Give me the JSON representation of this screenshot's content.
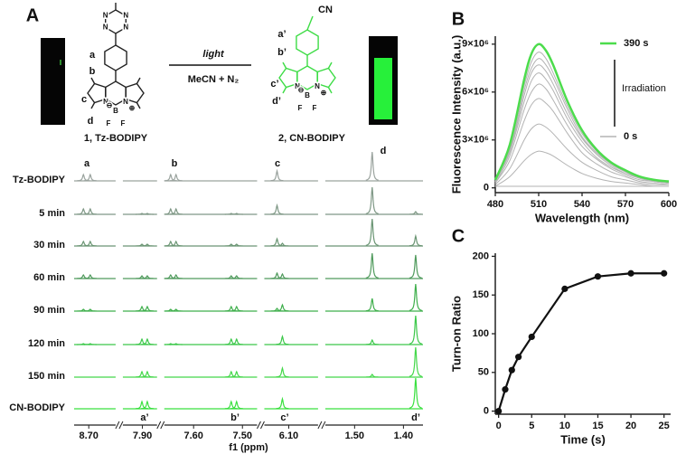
{
  "panel_a": {
    "label": "A",
    "reactant": {
      "name": "1, Tz-BODIPY",
      "site_labels": [
        "a",
        "b",
        "c",
        "d"
      ],
      "atoms": [
        "N",
        "N",
        "N",
        "N",
        "N",
        "N",
        "B",
        "F",
        "F",
        "⊖",
        "⊕"
      ]
    },
    "product": {
      "name": "2, CN-BODIPY",
      "substituent": "CN",
      "site_labels": [
        "a’",
        "b’",
        "c’",
        "d’"
      ],
      "atoms": [
        "N",
        "N",
        "B",
        "F",
        "F",
        "⊖",
        "⊕"
      ]
    },
    "conditions": {
      "above": "light",
      "below": "MeCN + N₂"
    },
    "nmr": {
      "xlabel": "f1 (ppm)",
      "segments": [
        {
          "range": [
            8.73,
            8.645
          ],
          "ticks": [
            {
              "value": 8.7,
              "label": "8.70"
            }
          ]
        },
        {
          "range": [
            7.94,
            7.87
          ],
          "ticks": [
            {
              "value": 7.9,
              "label": "7.90"
            }
          ]
        },
        {
          "range": [
            7.66,
            7.47
          ],
          "ticks": [
            {
              "value": 7.6,
              "label": "7.60"
            },
            {
              "value": 7.5,
              "label": "7.50"
            }
          ]
        },
        {
          "range": [
            6.15,
            6.04
          ],
          "ticks": [
            {
              "value": 6.1,
              "label": "6.10"
            }
          ]
        },
        {
          "range": [
            1.56,
            1.36
          ],
          "ticks": [
            {
              "value": 1.5,
              "label": "1.50"
            },
            {
              "value": 1.4,
              "label": "1.40"
            }
          ]
        }
      ],
      "peak_labels_top": [
        "a",
        "b",
        "c",
        "d"
      ],
      "peak_labels_bottom": [
        "a’",
        "b’",
        "c’",
        "d’"
      ],
      "traces": [
        {
          "name": "Tz-BODIPY",
          "color": "#9aa39e",
          "peaks": [
            {
              "ppm": 8.711,
              "h": 7
            },
            {
              "ppm": 8.697,
              "h": 7
            },
            {
              "ppm": 7.647,
              "h": 7
            },
            {
              "ppm": 7.636,
              "h": 7
            },
            {
              "ppm": 6.124,
              "h": 11
            },
            {
              "ppm": 1.464,
              "h": 32
            }
          ]
        },
        {
          "name": "5 min",
          "color": "#7f9886",
          "peaks": [
            {
              "ppm": 8.711,
              "h": 6
            },
            {
              "ppm": 8.697,
              "h": 6
            },
            {
              "ppm": 7.901,
              "h": 1
            },
            {
              "ppm": 7.89,
              "h": 1
            },
            {
              "ppm": 7.647,
              "h": 6
            },
            {
              "ppm": 7.636,
              "h": 6
            },
            {
              "ppm": 7.523,
              "h": 1
            },
            {
              "ppm": 7.512,
              "h": 1
            },
            {
              "ppm": 6.124,
              "h": 10
            },
            {
              "ppm": 1.464,
              "h": 30
            },
            {
              "ppm": 1.375,
              "h": 3
            }
          ]
        },
        {
          "name": "30 min",
          "color": "#6a9573",
          "peaks": [
            {
              "ppm": 8.711,
              "h": 5
            },
            {
              "ppm": 8.697,
              "h": 5
            },
            {
              "ppm": 7.901,
              "h": 2
            },
            {
              "ppm": 7.89,
              "h": 2
            },
            {
              "ppm": 7.647,
              "h": 5
            },
            {
              "ppm": 7.636,
              "h": 5
            },
            {
              "ppm": 7.523,
              "h": 2
            },
            {
              "ppm": 7.512,
              "h": 2
            },
            {
              "ppm": 6.124,
              "h": 8
            },
            {
              "ppm": 6.113,
              "h": 3
            },
            {
              "ppm": 1.464,
              "h": 30
            },
            {
              "ppm": 1.375,
              "h": 11
            }
          ]
        },
        {
          "name": "60 min",
          "color": "#4f9a5c",
          "peaks": [
            {
              "ppm": 8.711,
              "h": 4
            },
            {
              "ppm": 8.697,
              "h": 4
            },
            {
              "ppm": 7.901,
              "h": 3
            },
            {
              "ppm": 7.89,
              "h": 3
            },
            {
              "ppm": 7.647,
              "h": 4
            },
            {
              "ppm": 7.636,
              "h": 4
            },
            {
              "ppm": 7.523,
              "h": 3
            },
            {
              "ppm": 7.512,
              "h": 3
            },
            {
              "ppm": 6.124,
              "h": 6
            },
            {
              "ppm": 6.113,
              "h": 5
            },
            {
              "ppm": 1.464,
              "h": 28
            },
            {
              "ppm": 1.375,
              "h": 26
            }
          ]
        },
        {
          "name": "90 min",
          "color": "#3faf4c",
          "peaks": [
            {
              "ppm": 8.711,
              "h": 2
            },
            {
              "ppm": 8.697,
              "h": 2
            },
            {
              "ppm": 7.901,
              "h": 5
            },
            {
              "ppm": 7.89,
              "h": 5
            },
            {
              "ppm": 7.647,
              "h": 2
            },
            {
              "ppm": 7.636,
              "h": 2
            },
            {
              "ppm": 7.523,
              "h": 5
            },
            {
              "ppm": 7.512,
              "h": 5
            },
            {
              "ppm": 6.124,
              "h": 3
            },
            {
              "ppm": 6.113,
              "h": 7
            },
            {
              "ppm": 1.464,
              "h": 14
            },
            {
              "ppm": 1.375,
              "h": 30
            }
          ]
        },
        {
          "name": "120 min",
          "color": "#3cc84a",
          "peaks": [
            {
              "ppm": 8.711,
              "h": 1
            },
            {
              "ppm": 8.697,
              "h": 1
            },
            {
              "ppm": 7.901,
              "h": 6
            },
            {
              "ppm": 7.89,
              "h": 6
            },
            {
              "ppm": 7.647,
              "h": 1
            },
            {
              "ppm": 7.636,
              "h": 1
            },
            {
              "ppm": 7.523,
              "h": 6
            },
            {
              "ppm": 7.512,
              "h": 6
            },
            {
              "ppm": 6.113,
              "h": 9
            },
            {
              "ppm": 1.464,
              "h": 5
            },
            {
              "ppm": 1.375,
              "h": 32
            }
          ]
        },
        {
          "name": "150 min",
          "color": "#44d84a",
          "peaks": [
            {
              "ppm": 7.901,
              "h": 6
            },
            {
              "ppm": 7.89,
              "h": 6
            },
            {
              "ppm": 7.523,
              "h": 6
            },
            {
              "ppm": 7.512,
              "h": 6
            },
            {
              "ppm": 6.113,
              "h": 10
            },
            {
              "ppm": 1.464,
              "h": 3
            },
            {
              "ppm": 1.375,
              "h": 33
            }
          ]
        },
        {
          "name": "CN-BODIPY",
          "color": "#39e03f",
          "peaks": [
            {
              "ppm": 7.901,
              "h": 8
            },
            {
              "ppm": 7.89,
              "h": 8
            },
            {
              "ppm": 7.523,
              "h": 8
            },
            {
              "ppm": 7.512,
              "h": 8
            },
            {
              "ppm": 6.113,
              "h": 11
            },
            {
              "ppm": 1.375,
              "h": 34
            }
          ]
        }
      ]
    }
  },
  "chart_data": [
    {
      "type": "line",
      "label": "B",
      "xlabel": "Wavelength (nm)",
      "ylabel": "Fluorescence Intensity (a.u.)",
      "annotation": "Irradiation",
      "x": [
        480,
        490,
        500,
        505,
        510,
        515,
        520,
        530,
        540,
        550,
        560,
        570,
        580,
        590,
        600
      ],
      "xlim": [
        480,
        600
      ],
      "xticks": [
        480,
        510,
        540,
        570,
        600
      ],
      "ylim": [
        -300000,
        9500000
      ],
      "yticks": [
        0,
        {
          "value": 3000000,
          "label": "3×10⁶"
        },
        {
          "value": 6000000,
          "label": "6×10⁶"
        },
        {
          "value": 9000000,
          "label": "9×10⁶"
        }
      ],
      "series": [
        {
          "name": "0 s",
          "color": "#b3b3b3",
          "values": [
            100000.0,
            100000.0,
            100000.0,
            100000.0,
            100000.0,
            100000.0,
            100000.0,
            100000.0,
            100000.0,
            100000.0,
            100000.0,
            100000.0,
            100000.0,
            100000.0,
            100000.0
          ]
        },
        {
          "color": "#b3b3b3",
          "values": [
            100000.0,
            700000.0,
            1700000.0,
            2100000.0,
            2300000.0,
            2200000.0,
            2000000.0,
            1400000.0,
            900000.0,
            600000.0,
            400000.0,
            300000.0,
            200000.0,
            100000.0,
            100000.0
          ]
        },
        {
          "color": "#b3b3b3",
          "values": [
            200000.0,
            1200000.0,
            3000000.0,
            3700000.0,
            4000000.0,
            3800000.0,
            3400000.0,
            2400000.0,
            1600000.0,
            1100000.0,
            700000.0,
            500000.0,
            300000.0,
            200000.0,
            200000.0
          ]
        },
        {
          "color": "#b3b3b3",
          "values": [
            300000.0,
            1700000.0,
            4200000.0,
            5200000.0,
            5600000.0,
            5300000.0,
            4800000.0,
            3400000.0,
            2200000.0,
            1500000.0,
            1000000.0,
            700000.0,
            400000.0,
            300000.0,
            200000.0
          ]
        },
        {
          "color": "#b3b3b3",
          "values": [
            300000.0,
            2000000.0,
            4900000.0,
            6000000.0,
            6500000.0,
            6200000.0,
            5500000.0,
            3900000.0,
            2600000.0,
            1800000.0,
            1200000.0,
            800000.0,
            500000.0,
            400000.0,
            300000.0
          ]
        },
        {
          "color": "#b3b3b3",
          "values": [
            400000.0,
            2200000.0,
            5400000.0,
            6700000.0,
            7200000.0,
            6800000.0,
            6100000.0,
            4300000.0,
            2900000.0,
            1900000.0,
            1300000.0,
            900000.0,
            600000.0,
            400000.0,
            300000.0
          ]
        },
        {
          "color": "#b3b3b3",
          "values": [
            400000.0,
            2300000.0,
            5800000.0,
            7200000.0,
            7700000.0,
            7300000.0,
            6500000.0,
            4600000.0,
            3100000.0,
            2100000.0,
            1400000.0,
            900000.0,
            600000.0,
            400000.0,
            300000.0
          ]
        },
        {
          "color": "#b3b3b3",
          "values": [
            400000.0,
            2400000.0,
            6100000.0,
            7500000.0,
            8100000.0,
            7700000.0,
            6900000.0,
            4900000.0,
            3200000.0,
            2200000.0,
            1500000.0,
            1000000.0,
            600000.0,
            400000.0,
            300000.0
          ]
        },
        {
          "color": "#b3b3b3",
          "values": [
            400000.0,
            2600000.0,
            6400000.0,
            7900000.0,
            8500000.0,
            8100000.0,
            7200000.0,
            5100000.0,
            3400000.0,
            2300000.0,
            1500000.0,
            1000000.0,
            700000.0,
            500000.0,
            300000.0
          ]
        },
        {
          "name": "390 s",
          "color": "#4cdc4c",
          "values": [
            500000.0,
            2700000.0,
            6800000.0,
            8400000.0,
            9000000.0,
            8600000.0,
            7700000.0,
            5400000.0,
            3600000.0,
            2400000.0,
            1600000.0,
            1100000.0,
            700000.0,
            500000.0,
            400000.0
          ]
        }
      ]
    },
    {
      "type": "line",
      "label": "C",
      "xlabel": "Time (s)",
      "ylabel": "Turn-on Ratio",
      "color": "#111111",
      "markers": true,
      "x": [
        0,
        1,
        2,
        3,
        5,
        10,
        15,
        20,
        25
      ],
      "values": [
        0,
        28,
        53,
        70,
        96,
        158,
        174,
        178,
        178
      ],
      "xlim": [
        -0.5,
        26
      ],
      "xticks": [
        0,
        5,
        10,
        15,
        20,
        25
      ],
      "ylim": [
        -4,
        204
      ],
      "yticks": [
        0,
        50,
        100,
        150,
        200
      ]
    }
  ]
}
